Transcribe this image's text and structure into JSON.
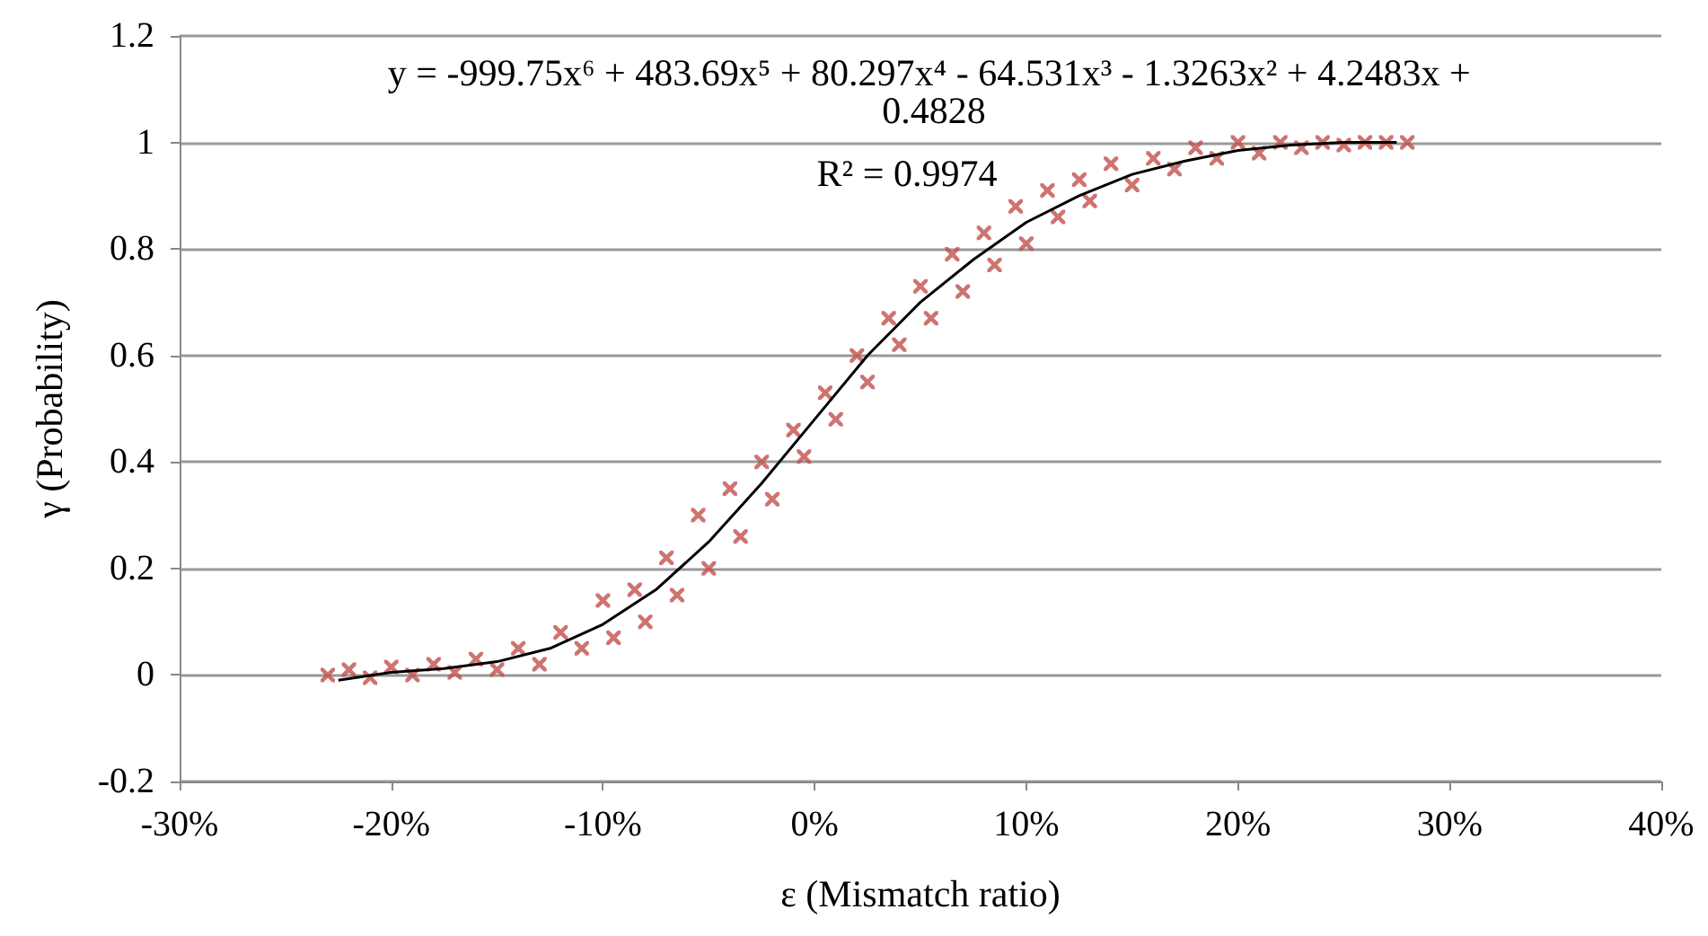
{
  "chart_data": {
    "type": "scatter",
    "xlabel": "ε (Mismatch ratio)",
    "ylabel": "γ (Probability)",
    "annotations": [
      "y = -999.75x⁶ + 483.69x⁵ + 80.297x⁴ - 64.531x³ - 1.3263x² + 4.2483x + 0.4828",
      "R² = 0.9974"
    ],
    "xlim": [
      -0.3,
      0.4
    ],
    "xticks": [
      {
        "value": -0.3,
        "label": "-30%"
      },
      {
        "value": -0.2,
        "label": "-20%"
      },
      {
        "value": -0.1,
        "label": "-10%"
      },
      {
        "value": 0,
        "label": "0%"
      },
      {
        "value": 0.1,
        "label": "10%"
      },
      {
        "value": 0.2,
        "label": "20%"
      },
      {
        "value": 0.3,
        "label": "30%"
      },
      {
        "value": 0.4,
        "label": "40%"
      }
    ],
    "ylim": [
      -0.2,
      1.2
    ],
    "yticks": [
      -0.2,
      0,
      0.2,
      0.4,
      0.6,
      0.8,
      1,
      1.2
    ],
    "grid": "y",
    "marker": "cross",
    "series": [
      {
        "color": "#c0504d",
        "x": [
          -0.23,
          -0.22,
          -0.21,
          -0.2,
          -0.19,
          -0.18,
          -0.17,
          -0.16,
          -0.15,
          -0.14,
          -0.13,
          -0.12,
          -0.11,
          -0.1,
          -0.095,
          -0.085,
          -0.08,
          -0.07,
          -0.065,
          -0.055,
          -0.05,
          -0.04,
          -0.035,
          -0.025,
          -0.02,
          -0.01,
          -0.005,
          0.005,
          0.01,
          0.02,
          0.025,
          0.035,
          0.04,
          0.05,
          0.055,
          0.065,
          0.07,
          0.08,
          0.085,
          0.095,
          0.1,
          0.11,
          0.115,
          0.125,
          0.13,
          0.14,
          0.15,
          0.16,
          0.17,
          0.18,
          0.19,
          0.2,
          0.21,
          0.22,
          0.23,
          0.24,
          0.25,
          0.26,
          0.27,
          0.28
        ],
        "values": [
          0.0,
          0.01,
          -0.005,
          0.015,
          0.0,
          0.02,
          0.005,
          0.03,
          0.01,
          0.05,
          0.02,
          0.08,
          0.05,
          0.14,
          0.07,
          0.16,
          0.1,
          0.22,
          0.15,
          0.3,
          0.2,
          0.35,
          0.26,
          0.4,
          0.33,
          0.46,
          0.41,
          0.53,
          0.48,
          0.6,
          0.55,
          0.67,
          0.62,
          0.73,
          0.67,
          0.79,
          0.72,
          0.83,
          0.77,
          0.88,
          0.81,
          0.91,
          0.86,
          0.93,
          0.89,
          0.96,
          0.92,
          0.97,
          0.95,
          0.99,
          0.97,
          1.0,
          0.98,
          1.0,
          0.99,
          1.0,
          0.995,
          1.0,
          1.0,
          1.0
        ]
      },
      {
        "type": "line",
        "color": "#000000",
        "marker": "none",
        "line_style": "solid",
        "x": [
          -0.225,
          -0.2,
          -0.175,
          -0.15,
          -0.125,
          -0.1,
          -0.075,
          -0.05,
          -0.025,
          0,
          0.025,
          0.05,
          0.075,
          0.1,
          0.125,
          0.15,
          0.175,
          0.2,
          0.225,
          0.25,
          0.275
        ],
        "values": [
          -0.01,
          0.005,
          0.012,
          0.025,
          0.05,
          0.095,
          0.16,
          0.25,
          0.36,
          0.48,
          0.6,
          0.7,
          0.78,
          0.85,
          0.9,
          0.94,
          0.965,
          0.985,
          0.995,
          1.0,
          1.0
        ]
      }
    ]
  }
}
